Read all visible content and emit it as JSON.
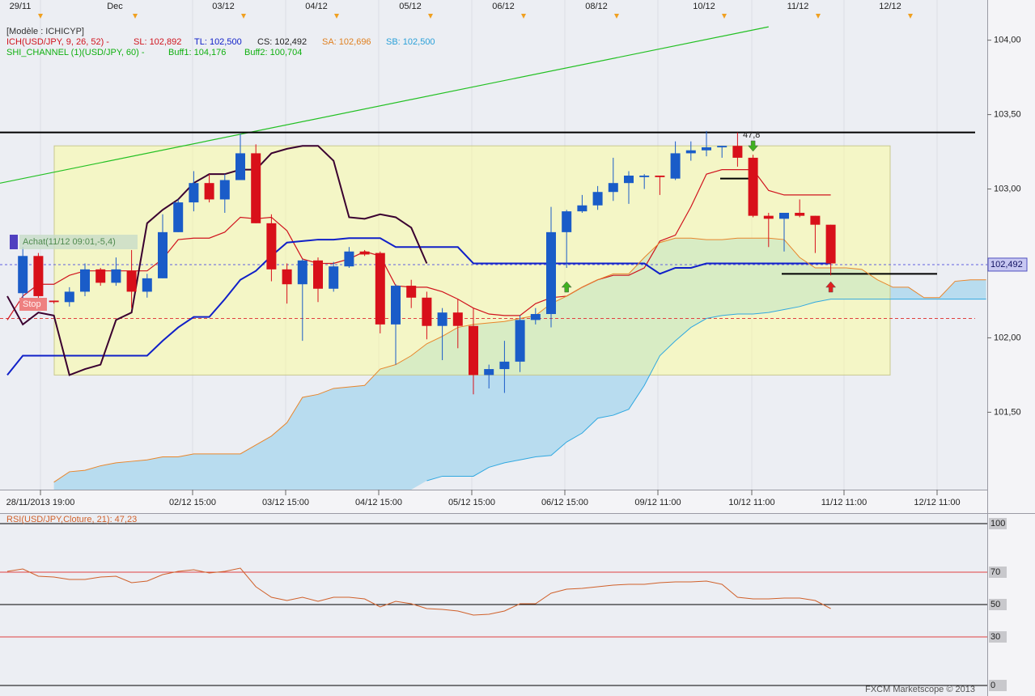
{
  "chart_data": [
    {
      "type": "candlestick",
      "model_label": "[Modèle : ICHICYP]",
      "indicator_labels": [
        {
          "text": "ICH(USD/JPY, 9, 26, 52) -",
          "color": "#d0141e"
        },
        {
          "text": "SL: 102,892",
          "color": "#d0141e"
        },
        {
          "text": "TL: 102,500",
          "color": "#1020c8"
        },
        {
          "text": "CS: 102,492",
          "color": "#222222"
        },
        {
          "text": "SA: 102,696",
          "color": "#e08020"
        },
        {
          "text": "SB: 102,500",
          "color": "#2aa0d8"
        },
        {
          "text": "SHI_CHANNEL (1)(USD/JPY, 60) -",
          "color": "#10b010"
        },
        {
          "text": "Buff1: 104,176",
          "color": "#10b010"
        },
        {
          "text": "Buff2: 100,704",
          "color": "#10b010"
        }
      ],
      "top_labels": [
        "29/11",
        "Dec",
        "03/12",
        "04/12",
        "05/12",
        "06/12",
        "08/12",
        "10/12",
        "11/12",
        "12/12"
      ],
      "bottom_labels": [
        "28/11/2013 19:00",
        "02/12 15:00",
        "03/12 15:00",
        "04/12 15:00",
        "05/12 15:00",
        "06/12 15:00",
        "09/12 11:00",
        "10/12 11:00",
        "11/12 11:00",
        "12/12 11:00"
      ],
      "ylim": [
        100.98,
        104.27
      ],
      "yticks": [
        {
          "value": 104,
          "label": "104,00"
        },
        {
          "value": 103.5,
          "label": "103,50"
        },
        {
          "value": 103,
          "label": "103,00"
        },
        {
          "value": 102,
          "label": "102,00"
        },
        {
          "value": 101.5,
          "label": "101,50"
        }
      ],
      "last_price": {
        "value": 102.492,
        "label": "102,492"
      },
      "up_color": "#1a5cc8",
      "down_color": "#d8101a",
      "open": [
        102.3,
        102.55,
        102.25,
        102.24,
        102.31,
        102.46,
        102.37,
        102.45,
        102.31,
        102.4,
        102.71,
        102.91,
        103.04,
        102.93,
        103.06,
        103.24,
        102.77,
        102.46,
        102.36,
        102.52,
        102.33,
        102.48,
        102.58,
        102.57,
        102.09,
        102.35,
        102.27,
        102.08,
        102.17,
        102.08,
        101.75,
        101.79,
        101.84,
        102.12,
        102.16,
        102.71,
        102.85,
        102.89,
        102.98,
        103.04,
        103.08,
        103.09,
        103.07,
        103.24,
        103.26,
        103.28,
        103.29,
        103.21,
        102.82,
        102.8,
        102.84,
        102.82,
        102.76
      ],
      "high": [
        102.61,
        102.57,
        102.25,
        102.34,
        102.5,
        102.47,
        102.54,
        102.59,
        102.43,
        102.83,
        102.93,
        103.12,
        103.1,
        103.1,
        103.37,
        103.3,
        102.83,
        102.5,
        102.53,
        102.54,
        102.51,
        102.61,
        102.59,
        102.58,
        102.36,
        102.39,
        102.31,
        102.2,
        102.26,
        102.2,
        101.82,
        101.98,
        102.15,
        102.2,
        102.88,
        102.86,
        102.96,
        103.02,
        103.21,
        103.12,
        103.1,
        103.09,
        103.32,
        103.32,
        103.39,
        103.29,
        103.38,
        103.23,
        102.84,
        102.84,
        102.93,
        102.82,
        102.76
      ],
      "low": [
        102.2,
        102.2,
        102.23,
        102.21,
        102.28,
        102.35,
        102.35,
        102.2,
        102.27,
        102.4,
        102.71,
        102.85,
        102.91,
        102.84,
        103.06,
        102.77,
        102.38,
        102.23,
        101.98,
        102.24,
        102.31,
        102.47,
        102.55,
        102.03,
        101.82,
        102.2,
        101.99,
        101.85,
        101.93,
        101.62,
        101.66,
        101.63,
        101.77,
        102.09,
        102.07,
        102.47,
        102.84,
        102.86,
        102.92,
        102.9,
        103.0,
        102.96,
        103.06,
        103.19,
        103.22,
        103.21,
        103.15,
        102.81,
        102.61,
        102.58,
        102.81,
        102.57,
        102.42
      ],
      "close": [
        102.55,
        102.28,
        102.24,
        102.31,
        102.46,
        102.37,
        102.46,
        102.31,
        102.4,
        102.71,
        102.91,
        103.04,
        102.93,
        103.06,
        103.24,
        102.77,
        102.46,
        102.36,
        102.52,
        102.33,
        102.48,
        102.58,
        102.56,
        102.09,
        102.35,
        102.27,
        102.08,
        102.17,
        102.08,
        101.75,
        101.79,
        101.84,
        102.12,
        102.16,
        102.71,
        102.85,
        102.89,
        102.98,
        103.04,
        103.09,
        103.09,
        103.08,
        103.24,
        103.26,
        103.28,
        103.29,
        103.21,
        102.82,
        102.8,
        102.84,
        102.82,
        102.76,
        102.5
      ],
      "series": [
        {
          "color": "#d0141e",
          "values": [
            102.12,
            102.28,
            102.36,
            102.36,
            102.42,
            102.45,
            102.45,
            102.45,
            102.45,
            102.45,
            102.53,
            102.66,
            102.67,
            102.67,
            102.71,
            102.81,
            102.8,
            102.81,
            102.72,
            102.53,
            102.5,
            102.5,
            102.53,
            102.58,
            102.55,
            102.35,
            102.34,
            102.34,
            102.31,
            102.26,
            102.2,
            102.16,
            102.15,
            102.15,
            102.23,
            102.27,
            102.28,
            102.34,
            102.39,
            102.42,
            102.42,
            102.47,
            102.65,
            102.69,
            102.88,
            103.1,
            103.13,
            103.13,
            103.13,
            102.99,
            102.96,
            102.96,
            102.96,
            102.96,
            null,
            null,
            null,
            null,
            null,
            null,
            null,
            null,
            null,
            null
          ]
        },
        {
          "color": "#1020c8",
          "values": [
            101.75,
            101.88,
            101.88,
            101.88,
            101.88,
            101.88,
            101.88,
            101.88,
            101.88,
            101.88,
            101.98,
            102.07,
            102.14,
            102.14,
            102.26,
            102.39,
            102.45,
            102.55,
            102.64,
            102.65,
            102.66,
            102.66,
            102.67,
            102.67,
            102.67,
            102.61,
            102.61,
            102.61,
            102.61,
            102.61,
            102.5,
            102.5,
            102.5,
            102.5,
            102.5,
            102.5,
            102.5,
            102.5,
            102.5,
            102.5,
            102.5,
            102.5,
            102.43,
            102.47,
            102.47,
            102.5,
            102.5,
            102.5,
            102.5,
            102.5,
            102.5,
            102.5,
            102.5,
            102.5,
            null,
            null,
            null,
            null,
            null,
            null,
            null,
            null,
            null,
            null
          ]
        },
        {
          "color": "#3a0030",
          "values": [
            102.28,
            102.09,
            102.17,
            102.15,
            101.75,
            101.79,
            101.82,
            102.12,
            102.17,
            102.77,
            102.86,
            102.93,
            103.04,
            103.1,
            103.1,
            103.13,
            103.13,
            103.24,
            103.27,
            103.29,
            103.29,
            103.19,
            102.81,
            102.8,
            102.83,
            102.81,
            102.74,
            102.5,
            null,
            null,
            null,
            null,
            null,
            null,
            null,
            null,
            null,
            null,
            null,
            null,
            null,
            null,
            null,
            null,
            null,
            null,
            null,
            null,
            null,
            null,
            null,
            null,
            null,
            null,
            null,
            null,
            null,
            null,
            null,
            null,
            null,
            null,
            null,
            null
          ]
        },
        {
          "color": "#e8862c",
          "values": [
            null,
            null,
            null,
            101.03,
            101.1,
            101.11,
            101.14,
            101.16,
            101.17,
            101.18,
            101.2,
            101.2,
            101.22,
            101.22,
            101.22,
            101.22,
            101.28,
            101.34,
            101.43,
            101.6,
            101.62,
            101.66,
            101.67,
            101.68,
            101.79,
            101.82,
            101.88,
            101.96,
            102.01,
            102.07,
            102.09,
            102.1,
            102.11,
            102.13,
            102.15,
            102.23,
            102.28,
            102.34,
            102.39,
            102.43,
            102.43,
            102.54,
            102.64,
            102.67,
            102.67,
            102.66,
            102.66,
            102.67,
            102.67,
            102.67,
            102.66,
            102.54,
            102.47,
            102.47,
            102.47,
            102.46,
            102.39,
            102.34,
            102.34,
            102.27,
            102.27,
            102.38,
            102.39,
            102.39
          ]
        },
        {
          "color": "#30a8e0",
          "values": [
            null,
            null,
            null,
            null,
            null,
            null,
            null,
            null,
            null,
            null,
            null,
            null,
            null,
            null,
            null,
            null,
            null,
            null,
            null,
            null,
            null,
            null,
            null,
            null,
            null,
            null,
            null,
            101.04,
            101.07,
            101.07,
            101.07,
            101.13,
            101.16,
            101.18,
            101.2,
            101.21,
            101.3,
            101.36,
            101.46,
            101.48,
            101.52,
            101.68,
            101.88,
            101.98,
            102.07,
            102.13,
            102.15,
            102.16,
            102.16,
            102.17,
            102.19,
            102.21,
            102.24,
            102.26,
            102.26,
            102.26,
            102.26,
            102.26,
            102.26,
            102.26,
            102.26,
            102.26,
            102.26,
            102.26
          ]
        }
      ],
      "cloud_color": "#b8dcef",
      "box": {
        "top": 103.29,
        "bottom": 101.75,
        "color": "#ffff90"
      },
      "channel_line": {
        "values": [
          103.05,
          104.09
        ],
        "color": "#22c022"
      },
      "hlines": [
        {
          "value": 103.38,
          "color": "#000000"
        },
        {
          "value": 102.43,
          "color": "#000000"
        },
        {
          "value": 103.07,
          "color": "#000000"
        },
        {
          "value": 102.13,
          "color": "#e04040"
        }
      ],
      "signal_label": "47,8",
      "buy_label": "Achat(11/12 09:01,-5,4)",
      "stop_label": "Stop"
    },
    {
      "type": "line",
      "label": "RSI(USD/JPY,Cloture, 21): 47,23",
      "color": "#d0602a",
      "values": [
        70.5,
        72,
        67.5,
        67,
        65.5,
        65.5,
        67,
        67.5,
        63.5,
        64.5,
        68.5,
        70.5,
        71.5,
        69.5,
        70.5,
        72.5,
        61,
        54.5,
        52.5,
        54.5,
        52,
        54.5,
        54.5,
        53.5,
        48.5,
        52,
        50.5,
        47.5,
        47,
        46,
        43.5,
        44,
        46,
        50.5,
        50.5,
        57,
        59.5,
        60,
        61,
        62,
        62.5,
        62.5,
        63.5,
        64,
        64,
        64.5,
        62.5,
        54.5,
        53.5,
        53.5,
        54,
        54,
        52.5,
        47.5
      ],
      "ylim": [
        0,
        100
      ],
      "yticks": [
        100,
        70,
        50,
        30,
        0
      ],
      "level_colors": [
        "#000000",
        "#e04040",
        "#000000",
        "#e04040",
        "#000000"
      ]
    }
  ],
  "footer": "FXCM Marketscope © 2013"
}
